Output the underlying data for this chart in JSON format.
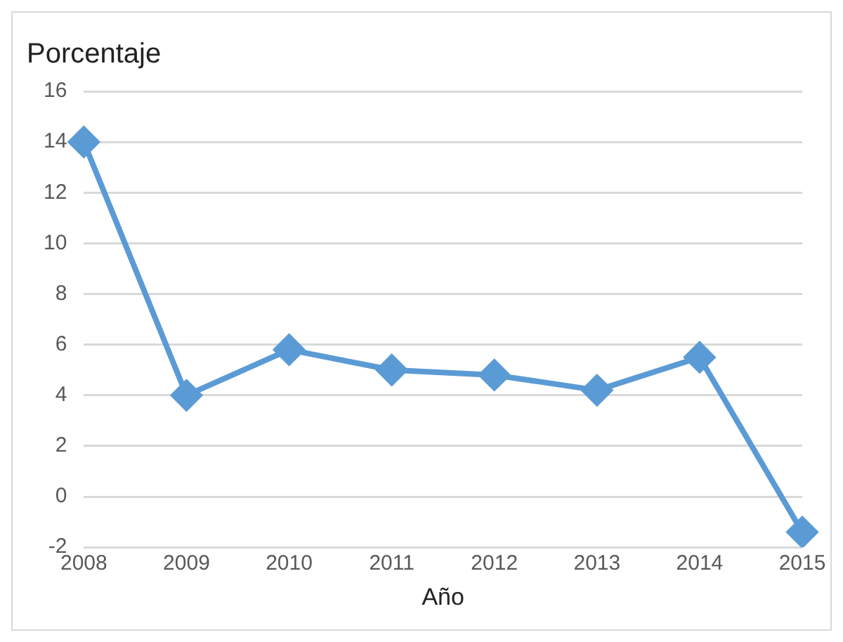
{
  "chart_data": {
    "type": "line",
    "title": "Porcentaje",
    "xlabel": "Año",
    "categories": [
      "2008",
      "2009",
      "2010",
      "2011",
      "2012",
      "2013",
      "2014",
      "2015"
    ],
    "series": [
      {
        "color": "#5b9bd5",
        "values": [
          14,
          4,
          5.8,
          5,
          4.8,
          4.2,
          5.5,
          -1.4
        ]
      }
    ],
    "ylim": [
      -2,
      16
    ],
    "yticks": [
      -2,
      0,
      2,
      4,
      6,
      8,
      10,
      12,
      14,
      16
    ],
    "grid": "y",
    "legend": false,
    "marker": "diamond",
    "line_style": "solid"
  }
}
